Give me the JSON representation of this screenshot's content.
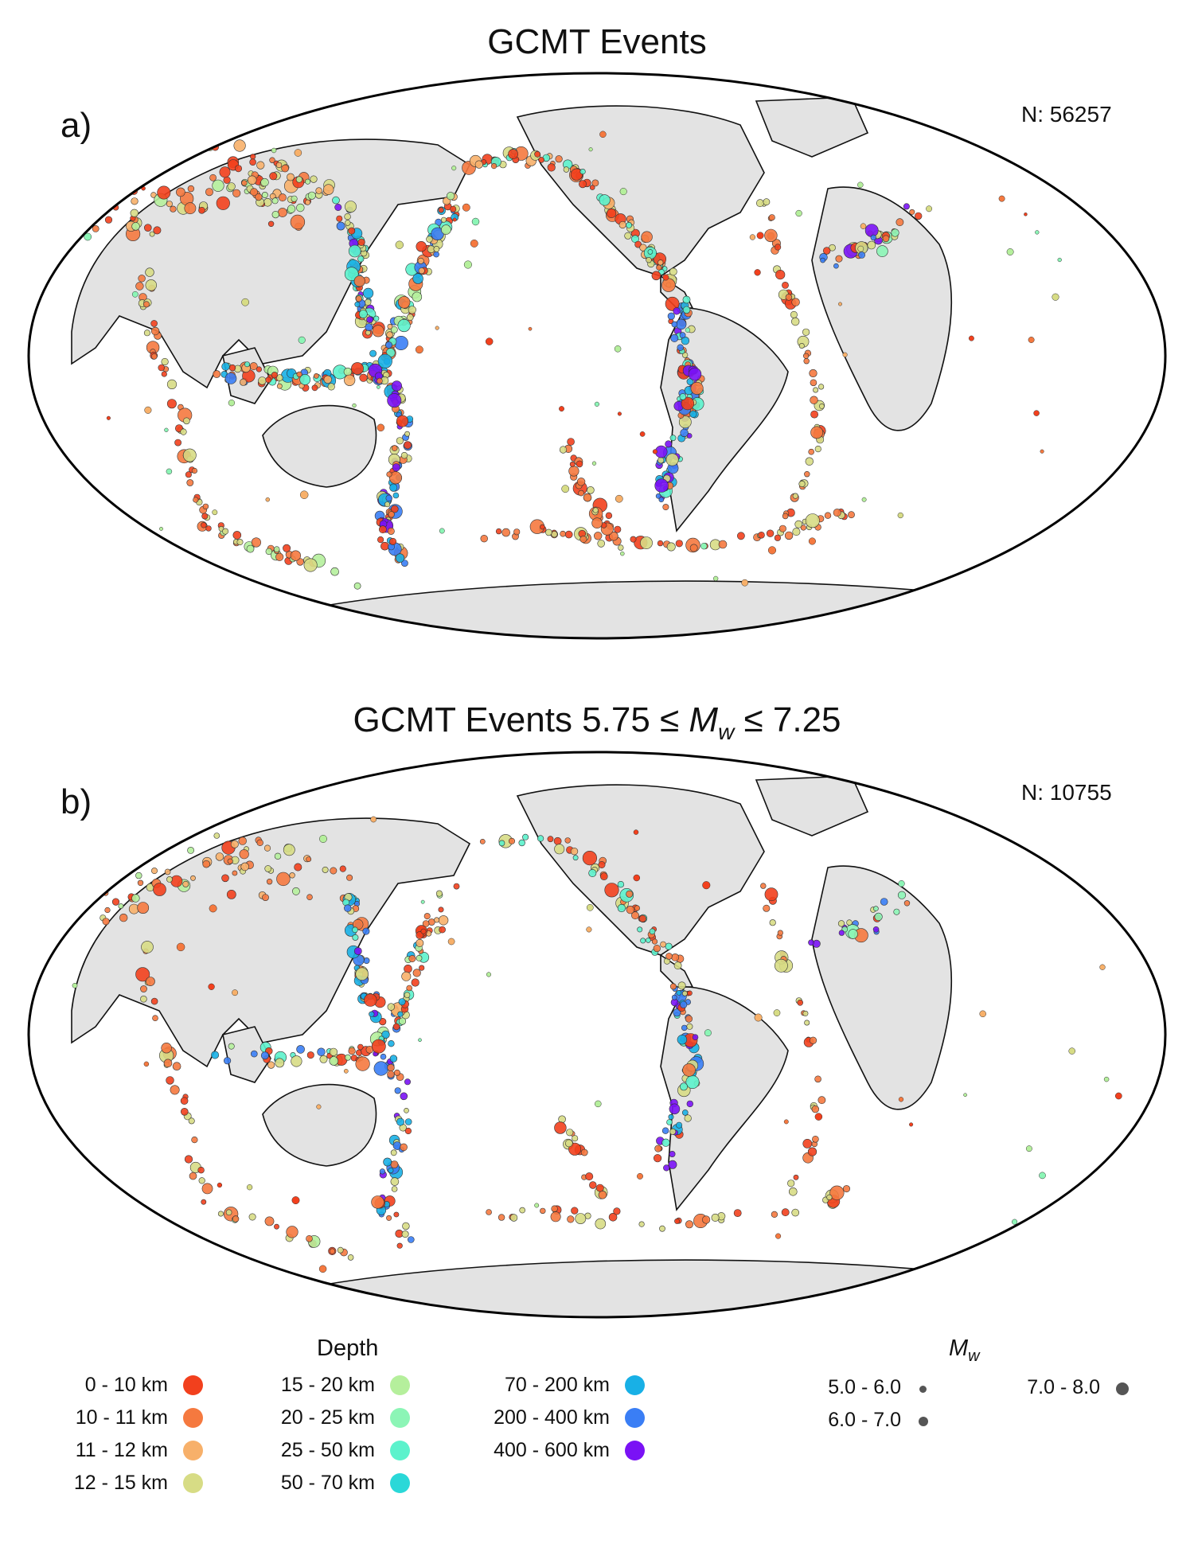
{
  "panels": [
    {
      "title": "GCMT Events",
      "label": "a)",
      "count_text": "N: 56257"
    },
    {
      "title": "GCMT Events 5.75 ≤ Mᵥᵥ ≤ 7.25",
      "title_parts": [
        "GCMT Events 5.75 ≤ ",
        "M",
        "w",
        " ≤ 7.25"
      ],
      "label": "b)",
      "count_text": "N: 10755"
    }
  ],
  "legend": {
    "depth_title": "Depth",
    "depth_items": [
      {
        "label": "0 - 10 km",
        "color": "#f2401d"
      },
      {
        "label": "10 - 11 km",
        "color": "#f5793f"
      },
      {
        "label": "11 - 12 km",
        "color": "#f7b06a"
      },
      {
        "label": "12 - 15 km",
        "color": "#d7dc85"
      },
      {
        "label": "15 - 20 km",
        "color": "#b5ef9c"
      },
      {
        "label": "20 - 25 km",
        "color": "#8cf5b6"
      },
      {
        "label": "25 - 50 km",
        "color": "#5cf2cc"
      },
      {
        "label": "50 - 70 km",
        "color": "#2ad8d8"
      },
      {
        "label": "70 - 200 km",
        "color": "#18b0e6"
      },
      {
        "label": "200 - 400 km",
        "color": "#3a7ef5"
      },
      {
        "label": "400 - 600 km",
        "color": "#7a12f5"
      }
    ],
    "mw_title_main": "M",
    "mw_title_sub": "w",
    "mw_items": [
      {
        "label": "5.0 -  6.0"
      },
      {
        "label": "6.0 -  7.0"
      },
      {
        "label": "7.0 -  8.0"
      }
    ]
  },
  "chart_data": [
    {
      "type": "scatter",
      "title": "GCMT Events",
      "panel": "a)",
      "annotation": "N: 56257",
      "projection": "Hammer-Aitoff world map, Pacific-centered",
      "encoding": {
        "color": "depth (km)",
        "size": "Mw"
      },
      "depth_classes": [
        "0 - 10 km",
        "10 - 11 km",
        "11 - 12 km",
        "12 - 15 km",
        "15 - 20 km",
        "20 - 25 km",
        "25 - 50 km",
        "50 - 70 km",
        "70 - 200 km",
        "200 - 400 km",
        "400 - 600 km"
      ],
      "mw_classes": [
        "5.0 - 6.0",
        "6.0 - 7.0",
        "7.0 - 8.0"
      ]
    },
    {
      "type": "scatter",
      "title": "GCMT Events 5.75 ≤ Mw ≤ 7.25",
      "panel": "b)",
      "annotation": "N: 10755",
      "projection": "Hammer-Aitoff world map, Pacific-centered",
      "encoding": {
        "color": "depth (km)",
        "size": "Mw"
      },
      "depth_classes": [
        "0 - 10 km",
        "10 - 11 km",
        "11 - 12 km",
        "12 - 15 km",
        "15 - 20 km",
        "20 - 25 km",
        "25 - 50 km",
        "50 - 70 km",
        "70 - 200 km",
        "200 - 400 km",
        "400 - 600 km"
      ],
      "mw_classes": [
        "5.0 - 6.0",
        "6.0 - 7.0",
        "7.0 - 8.0"
      ]
    }
  ]
}
